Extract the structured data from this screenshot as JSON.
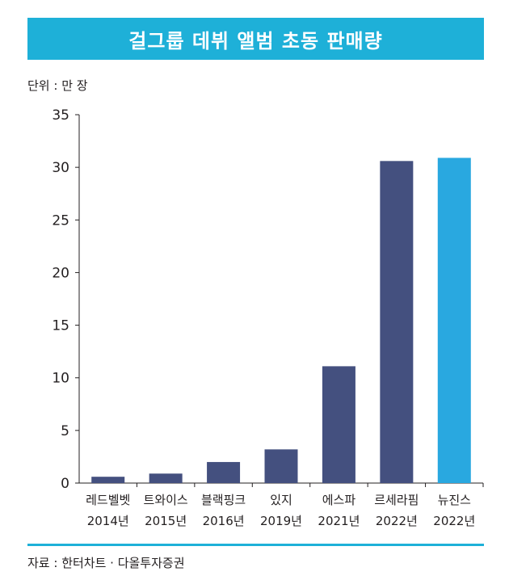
{
  "header": {
    "title": "걸그룹 데뷔 앨범 초동 판매량"
  },
  "unit_label": "단위 : 만 장",
  "source_label": "자료 : 한터차트 · 다올투자증권",
  "colors": {
    "title_bar": "#1eb0d8",
    "bar": "#44507f",
    "highlight_bar": "#29a8e0",
    "rule": "#1eb0d8"
  },
  "chart_data": {
    "type": "bar",
    "title": "걸그룹 데뷔 앨범 초동 판매량",
    "ylabel": "단위 : 만 장",
    "xlabel": "",
    "ylim": [
      0,
      35
    ],
    "yticks": [
      0,
      5,
      10,
      15,
      20,
      25,
      30,
      35
    ],
    "categories": [
      {
        "name": "레드벨벳",
        "year": "2014년"
      },
      {
        "name": "트와이스",
        "year": "2015년"
      },
      {
        "name": "블랙핑크",
        "year": "2016년"
      },
      {
        "name": "있지",
        "year": "2019년"
      },
      {
        "name": "에스파",
        "year": "2021년"
      },
      {
        "name": "르세라핌",
        "year": "2022년"
      },
      {
        "name": "뉴진스",
        "year": "2022년"
      }
    ],
    "values": [
      0.6,
      0.9,
      2.0,
      3.2,
      11.1,
      30.6,
      30.9
    ],
    "highlight_index": 6,
    "grid": false
  }
}
